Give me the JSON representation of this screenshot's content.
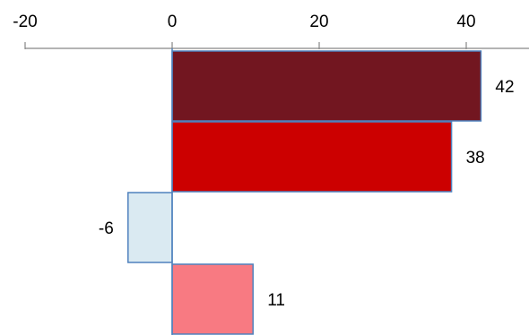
{
  "chart_data": {
    "type": "bar",
    "orientation": "horizontal",
    "title": "",
    "xlabel": "",
    "ylabel": "",
    "xlim": [
      -20,
      45
    ],
    "x_ticks": [
      -20,
      0,
      20,
      40
    ],
    "x_tick_labels": [
      "-20",
      "0",
      "20",
      "40"
    ],
    "axis_position": "top",
    "grid": false,
    "values": [
      42,
      38,
      -6,
      11
    ],
    "data_labels": [
      "42",
      "38",
      "-6",
      "11"
    ],
    "bar_colors": [
      "#721620",
      "#cc0000",
      "#daeaf2",
      "#f87a82"
    ],
    "bar_border_color": "#4f81bd"
  }
}
